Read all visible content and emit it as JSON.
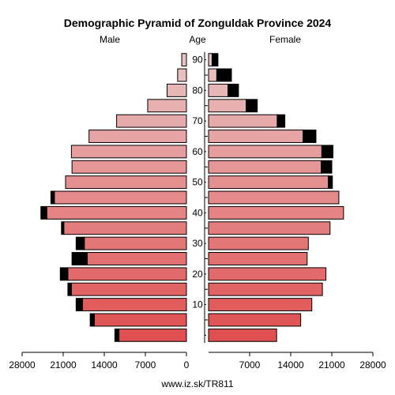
{
  "chart_data": {
    "type": "bar",
    "title": "Demographic Pyramid of Zonguldak Province 2024",
    "left_header": "Male",
    "center_header": "Age",
    "right_header": "Female",
    "source": "www.iz.sk/TR811",
    "age_groups": [
      "0-4",
      "5-9",
      "10-14",
      "15-19",
      "20-24",
      "25-29",
      "30-34",
      "35-39",
      "40-44",
      "45-49",
      "50-54",
      "55-59",
      "60-64",
      "65-69",
      "70-74",
      "75-79",
      "80-84",
      "85-89",
      "90+"
    ],
    "age_tick_labels": [
      "10",
      "20",
      "30",
      "40",
      "50",
      "60",
      "70",
      "80",
      "90"
    ],
    "age_tick_groups": [
      2,
      4,
      6,
      8,
      10,
      12,
      14,
      16,
      18
    ],
    "x_ticks": [
      28000,
      21000,
      14000,
      7000,
      0,
      7000,
      14000,
      21000,
      28000
    ],
    "xlim": [
      0,
      28000
    ],
    "series": [
      {
        "name": "Male",
        "values": [
          11500,
          15700,
          17700,
          19600,
          20200,
          16900,
          17400,
          20900,
          23800,
          22500,
          20600,
          19500,
          19600,
          16600,
          11900,
          6600,
          3300,
          1500,
          800
        ],
        "excess": [
          700,
          700,
          1100,
          600,
          1300,
          2600,
          1400,
          400,
          1000,
          600,
          0,
          0,
          0,
          0,
          0,
          0,
          0,
          0,
          0
        ]
      },
      {
        "name": "Female",
        "values": [
          11600,
          15700,
          17600,
          19400,
          20000,
          16800,
          17000,
          20700,
          23000,
          22200,
          20400,
          19200,
          19300,
          16100,
          11700,
          6400,
          3300,
          1400,
          600
        ],
        "excess": [
          0,
          0,
          0,
          0,
          0,
          0,
          0,
          0,
          0,
          0,
          700,
          1800,
          1900,
          2200,
          1300,
          1900,
          1800,
          2500,
          1000
        ]
      }
    ],
    "colors": {
      "bar_young": "#e05050",
      "bar_old": "#e8c4c4",
      "excess": "#000000",
      "outline": "#000000"
    }
  }
}
